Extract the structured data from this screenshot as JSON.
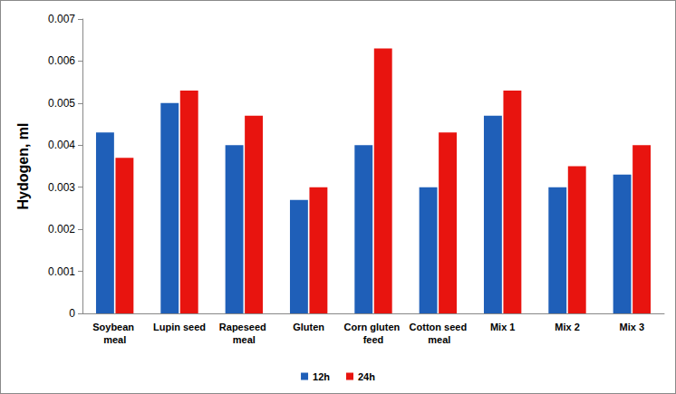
{
  "chart_data": {
    "type": "bar",
    "y_label": "Hydogen, ml",
    "categories": [
      "Soybean meal",
      "Lupin seed",
      "Rapeseed meal",
      "Gluten",
      "Corn gluten feed",
      "Cotton seed meal",
      "Mix 1",
      "Mix 2",
      "Mix 3"
    ],
    "series": [
      {
        "name": "12h",
        "color": "#1f5fb8",
        "values": [
          0.0043,
          0.005,
          0.004,
          0.0027,
          0.004,
          0.003,
          0.0047,
          0.003,
          0.0033
        ]
      },
      {
        "name": "24h",
        "color": "#e8140f",
        "values": [
          0.0037,
          0.0053,
          0.0047,
          0.003,
          0.0063,
          0.0043,
          0.0053,
          0.0035,
          0.004
        ]
      }
    ],
    "ylim": [
      0,
      0.007
    ],
    "yticks": [
      0,
      0.001,
      0.002,
      0.003,
      0.004,
      0.005,
      0.006,
      0.007
    ],
    "grid": false,
    "legend": "bottom"
  }
}
